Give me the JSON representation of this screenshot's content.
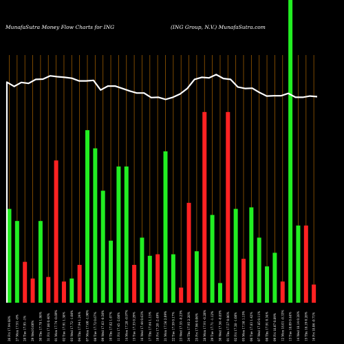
{
  "chart_data": {
    "type": "bar",
    "title_left": "MunafaSutra  Money Flow  Charts for ING",
    "title_right": "(ING Group, N.V.) MunafaSutra.com",
    "colors": {
      "background": "#000000",
      "up": "#22ee22",
      "down": "#ff2222",
      "grid": "#9a5a00",
      "line": "#ffffff"
    },
    "categories": [
      "26 Fri 17.94 68%",
      "27 Mon 17.91 -0%",
      "28 Tue 17.95 -1%",
      "29 Wed 0.00%",
      "30 Thu 17.78 1.98%",
      "31 Fri 17.86 0.40%",
      "01 Mon 17.74 -0.69%",
      "02 Tue 17.91 1.38%",
      "03 Wed 17.72 -1.08%",
      "04 Thu 17.94 1.24%",
      "07 Mon 17.60 -1.90%",
      "08 Tue 17.72 0.67%",
      "09 Wed 17.63 -0.50%",
      "10 Thu 17.82 1.07%",
      "11 Fri 17.45 -2.08%",
      "14 Mon 17.28 -0.97%",
      "15 Tue 17.33 0.29%",
      "16 Wed 17.44 0.63%",
      "17 Thu 17.64 1.15%",
      "18 Fri 17.20 -2.49%",
      "21 Mon 17.56 2.09%",
      "22 Tue 17.59 0.17%",
      "23 Wed 17.55 -0.23%",
      "24 Thu 17.95 2.28%",
      "25 Fri 17.96 0.06%",
      "28 Mon 17.91 -0.28%",
      "29 Tue 17.71 -1.12%",
      "30 Wed 17.56 -0.85%",
      "01 Thu 17.57 0.06%",
      "02 Fri 17.38 -1.08%",
      "05 Mon 17.58 1.15%",
      "06 Tue 17.83 1.42%",
      "07 Wed 17.85 0.11%",
      "08 Thu 17.91 0.34%",
      "09 Fri 18.07 0.89%",
      "12 Mon 18.01 -0.33%",
      "13 Tue 18.09 0.44%",
      "14 Wed 18.14 0.28%",
      "15 Thu 18.19 0.28%",
      "16 Fri 18.06 -0.71%"
    ],
    "flow": [
      "up",
      "up",
      "down",
      "down",
      "up",
      "down",
      "down",
      "down",
      "up",
      "down",
      "up",
      "up",
      "up",
      "up",
      "up",
      "up",
      "down",
      "up",
      "up",
      "down",
      "up",
      "up",
      "down",
      "down",
      "up",
      "down",
      "up",
      "up",
      "down",
      "up",
      "down",
      "up",
      "up",
      "up",
      "up",
      "down",
      "up",
      "up",
      "down",
      "down"
    ],
    "volume_levels": [
      0.31,
      0.27,
      0.135,
      0.08,
      0.27,
      0.085,
      0.47,
      0.07,
      0.08,
      0.125,
      0.57,
      0.51,
      0.37,
      0.205,
      0.45,
      0.45,
      0.125,
      0.215,
      0.155,
      0.16,
      0.5,
      0.16,
      0.05,
      0.33,
      0.17,
      0.63,
      0.29,
      0.065,
      0.63,
      0.31,
      0.145,
      0.315,
      0.215,
      0.12,
      0.165,
      0.07,
      1.0,
      0.255,
      0.255,
      0.06
    ],
    "price_line": [
      0.74,
      0.726,
      0.739,
      0.736,
      0.749,
      0.75,
      0.761,
      0.758,
      0.756,
      0.753,
      0.744,
      0.744,
      0.746,
      0.714,
      0.727,
      0.727,
      0.719,
      0.711,
      0.704,
      0.704,
      0.689,
      0.69,
      0.683,
      0.69,
      0.701,
      0.719,
      0.749,
      0.756,
      0.754,
      0.765,
      0.752,
      0.749,
      0.724,
      0.719,
      0.72,
      0.706,
      0.694,
      0.695,
      0.695,
      0.703,
      0.69,
      0.69,
      0.694,
      0.692
    ]
  }
}
